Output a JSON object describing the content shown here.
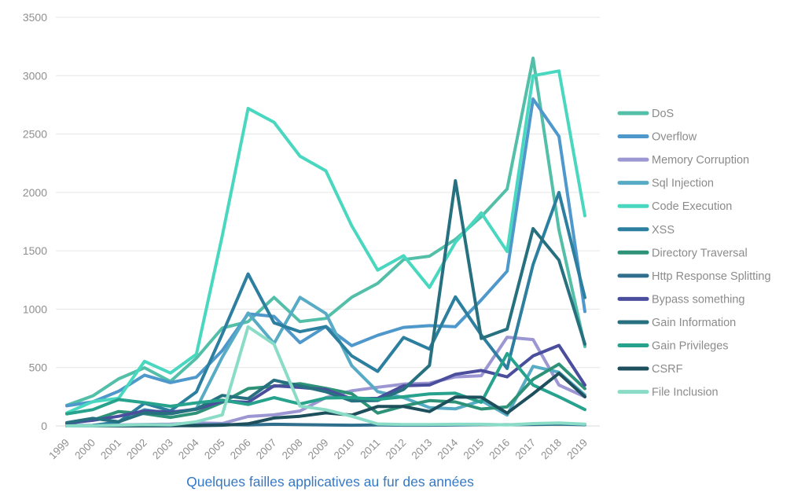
{
  "chart_data": {
    "type": "line",
    "title": "Quelques failles applicatives au fur des années",
    "x": [
      1999,
      2000,
      2001,
      2002,
      2003,
      2004,
      2005,
      2006,
      2007,
      2008,
      2009,
      2010,
      2011,
      2012,
      2013,
      2014,
      2015,
      2016,
      2017,
      2018,
      2019
    ],
    "ylim": [
      0,
      3500
    ],
    "ytick_step": 500,
    "grid": "horizontal",
    "legend_position": "right",
    "series": [
      {
        "name": "DoS",
        "color": "#54BFA9",
        "values": [
          177,
          257,
          403,
          498,
          381,
          580,
          838,
          893,
          1101,
          894,
          921,
          1102,
          1221,
          1425,
          1454,
          1598,
          1792,
          2029,
          3150,
          1680,
          680
        ]
      },
      {
        "name": "Overflow",
        "color": "#4E98CB",
        "values": [
          172,
          206,
          297,
          435,
          371,
          418,
          645,
          960,
          938,
          713,
          852,
          687,
          776,
          844,
          859,
          850,
          1079,
          1325,
          2800,
          2480,
          980
        ]
      },
      {
        "name": "Memory Corruption",
        "color": "#9C96D3",
        "values": [
          1,
          3,
          8,
          13,
          15,
          26,
          21,
          81,
          95,
          128,
          243,
          301,
          331,
          358,
          366,
          420,
          430,
          760,
          740,
          350,
          250
        ]
      },
      {
        "name": "Sql Injection",
        "color": "#57ABC4",
        "values": [
          0,
          4,
          34,
          140,
          104,
          148,
          588,
          967,
          706,
          1101,
          963,
          516,
          294,
          242,
          156,
          146,
          217,
          93,
          510,
          460,
          265
        ]
      },
      {
        "name": "Code Execution",
        "color": "#49D8BF",
        "values": [
          112,
          208,
          236,
          553,
          453,
          614,
          1627,
          2719,
          2601,
          2310,
          2185,
          1714,
          1334,
          1458,
          1186,
          1572,
          1825,
          1494,
          3000,
          3040,
          1800
        ]
      },
      {
        "name": "XSS",
        "color": "#2C7F9E",
        "values": [
          2,
          4,
          33,
          194,
          129,
          291,
          786,
          1302,
          883,
          807,
          851,
          600,
          467,
          758,
          658,
          1105,
          779,
          492,
          1382,
          2000,
          1100
        ]
      },
      {
        "name": "Directory Traversal",
        "color": "#2E9278",
        "values": [
          21,
          50,
          123,
          105,
          73,
          110,
          202,
          320,
          339,
          362,
          322,
          276,
          110,
          170,
          217,
          205,
          145,
          163,
          400,
          530,
          320
        ]
      },
      {
        "name": "Http Response Splitting",
        "color": "#2F6F8D",
        "values": [
          0,
          0,
          0,
          1,
          1,
          7,
          12,
          8,
          14,
          11,
          9,
          6,
          8,
          6,
          6,
          9,
          11,
          10,
          12,
          15,
          10
        ]
      },
      {
        "name": "Bypass something",
        "color": "#4A4E9D",
        "values": [
          25,
          48,
          83,
          129,
          118,
          142,
          214,
          202,
          344,
          330,
          311,
          232,
          236,
          344,
          351,
          442,
          475,
          420,
          600,
          690,
          350
        ]
      },
      {
        "name": "Gain Information",
        "color": "#27707F",
        "values": [
          28,
          65,
          36,
          112,
          104,
          145,
          261,
          233,
          392,
          344,
          293,
          214,
          218,
          313,
          518,
          2100,
          749,
          830,
          1690,
          1420,
          700
        ]
      },
      {
        "name": "Gain Privileges",
        "color": "#27A28C",
        "values": [
          103,
          139,
          226,
          199,
          168,
          198,
          221,
          184,
          242,
          188,
          239,
          242,
          227,
          250,
          274,
          280,
          202,
          620,
          350,
          250,
          140
        ]
      },
      {
        "name": "CSRF",
        "color": "#1D4F5C",
        "values": [
          0,
          0,
          0,
          2,
          3,
          2,
          6,
          18,
          68,
          83,
          112,
          92,
          166,
          166,
          123,
          247,
          246,
          110,
          275,
          450,
          250
        ]
      },
      {
        "name": "File Inclusion",
        "color": "#8ADCC7",
        "values": [
          0,
          1,
          6,
          11,
          8,
          36,
          94,
          849,
          700,
          170,
          138,
          83,
          17,
          12,
          12,
          14,
          14,
          9,
          20,
          25,
          15
        ]
      }
    ]
  },
  "style_colors": {
    "title": "#3478C6",
    "axis_label": "#8F8F8F",
    "legend_label": "#8B8B8B",
    "gridline": "#E6E6E6",
    "axis_line": "#D8D8D8",
    "background": "#FFFFFF"
  }
}
